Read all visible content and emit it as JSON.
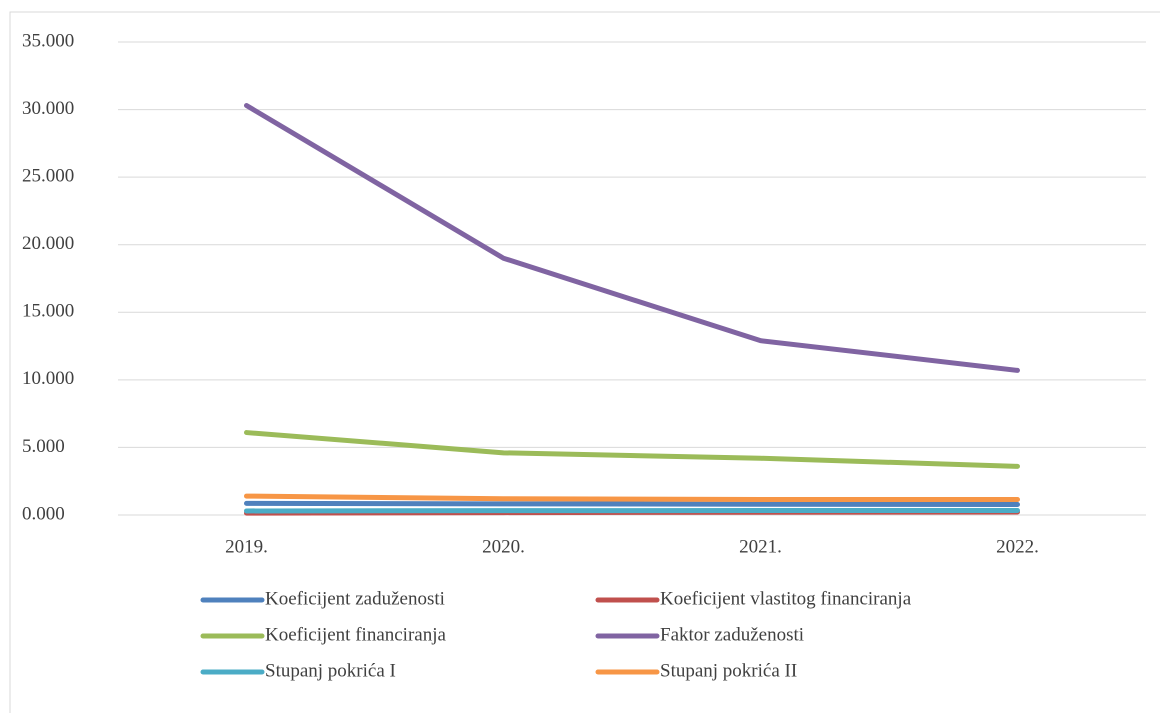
{
  "chart_data": {
    "type": "line",
    "categories": [
      "2019.",
      "2020.",
      "2021.",
      "2022."
    ],
    "series": [
      {
        "name": "Koeficijent zaduženosti",
        "color": "#4f81bd",
        "values": [
          0.86,
          0.82,
          0.8,
          0.78
        ]
      },
      {
        "name": "Koeficijent vlastitog financiranja",
        "color": "#c0504d",
        "values": [
          0.14,
          0.18,
          0.2,
          0.22
        ]
      },
      {
        "name": "Koeficijent financiranja",
        "color": "#9bbb59",
        "values": [
          6.1,
          4.6,
          4.2,
          3.6
        ]
      },
      {
        "name": "Faktor zaduženosti",
        "color": "#8064a2",
        "values": [
          30.3,
          19.0,
          12.9,
          10.7
        ]
      },
      {
        "name": "Stupanj pokrića I",
        "color": "#4bacc6",
        "values": [
          0.3,
          0.32,
          0.33,
          0.33
        ]
      },
      {
        "name": "Stupanj pokrića II",
        "color": "#f79646",
        "values": [
          1.4,
          1.2,
          1.15,
          1.15
        ]
      }
    ],
    "ylim": [
      0,
      35
    ],
    "yticks": [
      {
        "value": 0,
        "label": "0.000"
      },
      {
        "value": 5,
        "label": "5.000"
      },
      {
        "value": 10,
        "label": "10.000"
      },
      {
        "value": 15,
        "label": "15.000"
      },
      {
        "value": 20,
        "label": "20.000"
      },
      {
        "value": 25,
        "label": "25.000"
      },
      {
        "value": 30,
        "label": "30.000"
      },
      {
        "value": 35,
        "label": "35.000"
      }
    ],
    "grid": true
  }
}
